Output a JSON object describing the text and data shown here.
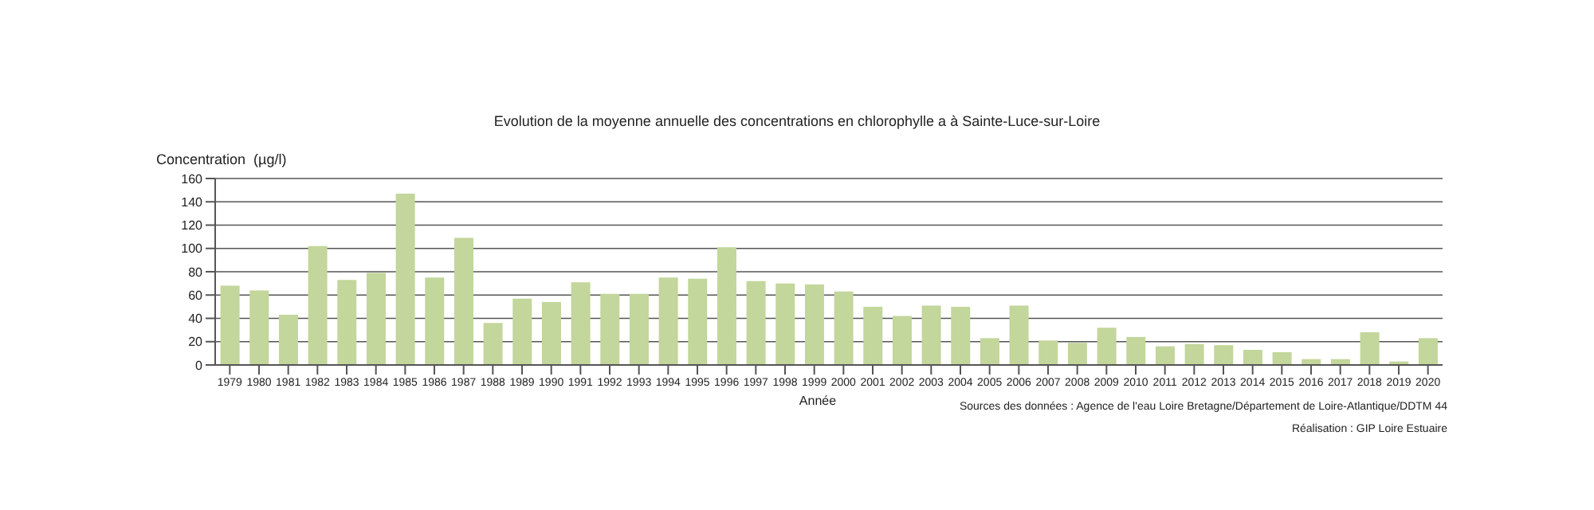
{
  "chart_data": {
    "type": "bar",
    "title": "Evolution de la moyenne annuelle des concentrations en chlorophylle a à Sainte-Luce-sur-Loire",
    "xlabel": "Année",
    "ylabel": "Concentration  (µg/l)",
    "categories": [
      "1979",
      "1980",
      "1981",
      "1982",
      "1983",
      "1984",
      "1985",
      "1986",
      "1987",
      "1988",
      "1989",
      "1990",
      "1991",
      "1992",
      "1993",
      "1994",
      "1995",
      "1996",
      "1997",
      "1998",
      "1999",
      "2000",
      "2001",
      "2002",
      "2003",
      "2004",
      "2005",
      "2006",
      "2007",
      "2008",
      "2009",
      "2010",
      "2011",
      "2012",
      "2013",
      "2014",
      "2015",
      "2016",
      "2017",
      "2018",
      "2019",
      "2020"
    ],
    "values": [
      68,
      64,
      43,
      102,
      73,
      79,
      147,
      75,
      109,
      36,
      57,
      54,
      71,
      61,
      61,
      75,
      74,
      101,
      72,
      70,
      69,
      63,
      50,
      42,
      51,
      50,
      23,
      51,
      21,
      19,
      32,
      24,
      16,
      18,
      17,
      13,
      11,
      5,
      5,
      28,
      3,
      23
    ],
    "color": "#c3d69b",
    "ylim": [
      0,
      160
    ],
    "yticks": [
      0,
      20,
      40,
      60,
      80,
      100,
      120,
      140,
      160
    ],
    "grid": "y",
    "annotations": [
      "Sources des données : Agence de l'eau Loire Bretagne/Département de Loire-Atlantique/DDTM 44",
      "Réalisation : GIP Loire Estuaire"
    ]
  }
}
